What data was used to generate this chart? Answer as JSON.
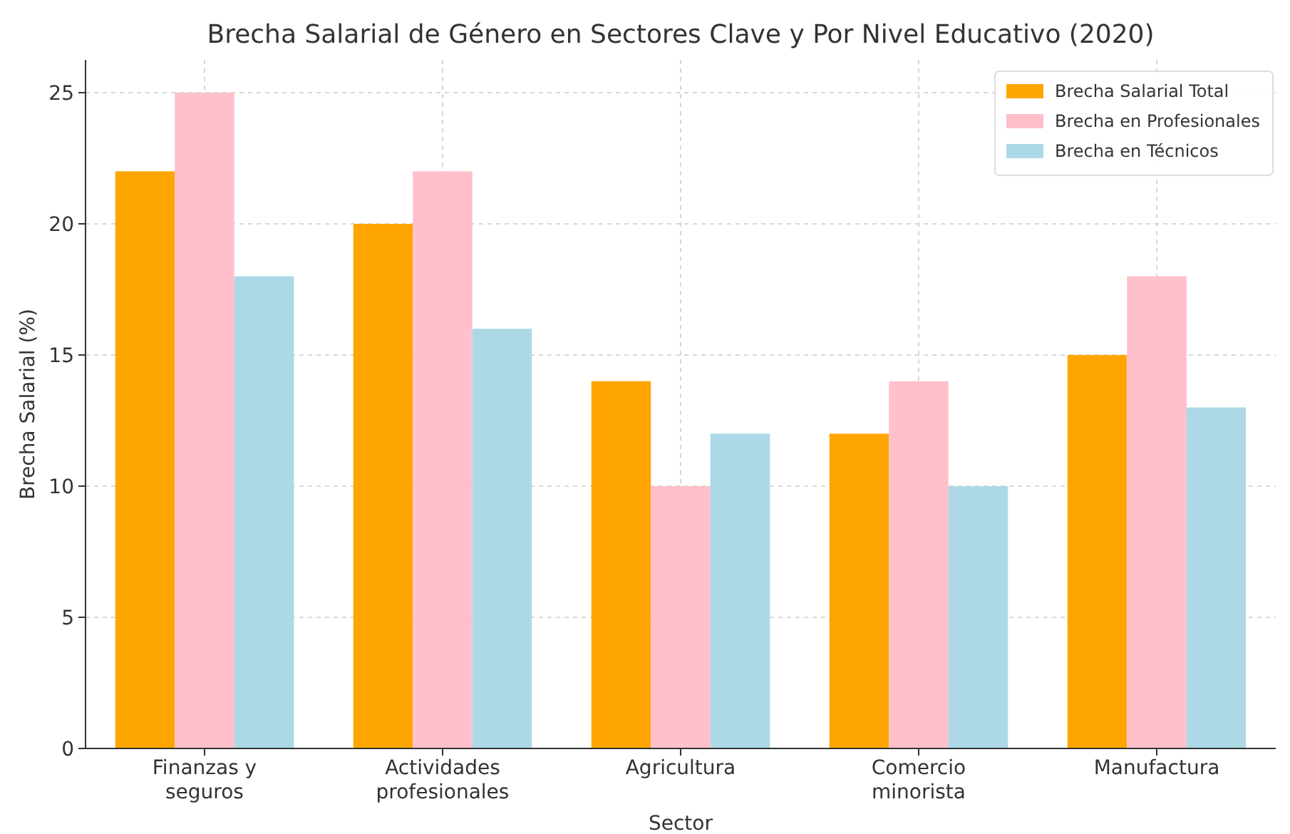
{
  "chart_data": {
    "type": "bar",
    "title": "Brecha Salarial de Género en Sectores Clave y Por Nivel Educativo (2020)",
    "xlabel": "Sector",
    "ylabel": "Brecha Salarial (%)",
    "categories": [
      "Finanzas y seguros",
      "Actividades profesionales",
      "Agricultura",
      "Comercio minorista",
      "Manufactura"
    ],
    "series": [
      {
        "name": "Brecha Salarial Total",
        "color": "#ffa500",
        "values": [
          22,
          20,
          14,
          12,
          15
        ]
      },
      {
        "name": "Brecha en Profesionales",
        "color": "#ffc0cb",
        "values": [
          25,
          22,
          10,
          14,
          18
        ]
      },
      {
        "name": "Brecha en Técnicos",
        "color": "#add8e6",
        "values": [
          18,
          16,
          12,
          10,
          13
        ]
      }
    ],
    "ylim": [
      0,
      26.25
    ],
    "yticks": [
      0,
      5,
      10,
      15,
      20,
      25
    ],
    "grid": true,
    "legend": "top right"
  }
}
